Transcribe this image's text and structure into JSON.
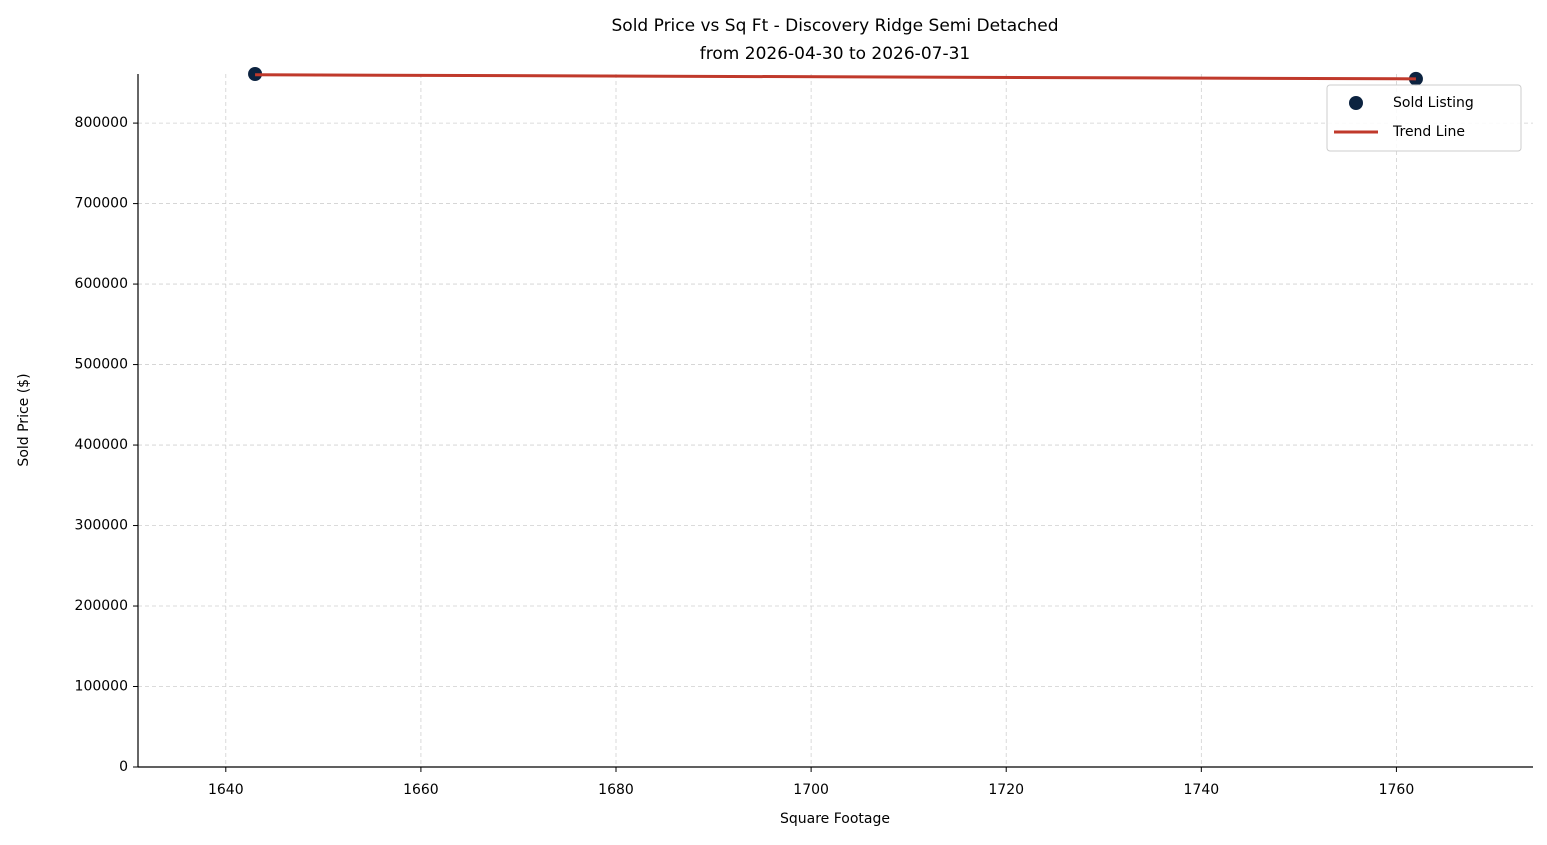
{
  "chart_data": {
    "type": "scatter",
    "title": "Sold Price vs Sq Ft - Discovery Ridge Semi Detached",
    "subtitle": "from 2026-04-30 to 2026-07-31",
    "x_label": "Square Footage",
    "y_label": "Sold Price ($)",
    "series": [
      {
        "name": "Sold Listing",
        "type": "scatter",
        "color": "#0c2340",
        "x": [
          1643,
          1762
        ],
        "values": [
          861000,
          855000
        ]
      },
      {
        "name": "Trend Line",
        "type": "line",
        "color": "#c0392b",
        "x": [
          1643,
          1762
        ],
        "values": [
          860000,
          855000
        ]
      }
    ],
    "xlim": [
      1631,
      1774
    ],
    "xticks": [
      1640,
      1660,
      1680,
      1700,
      1720,
      1740,
      1760
    ],
    "ylim": [
      0,
      861000
    ],
    "yticks": [
      0,
      100000,
      200000,
      300000,
      400000,
      500000,
      600000,
      700000,
      800000
    ],
    "grid": true,
    "legend": "upper right"
  }
}
